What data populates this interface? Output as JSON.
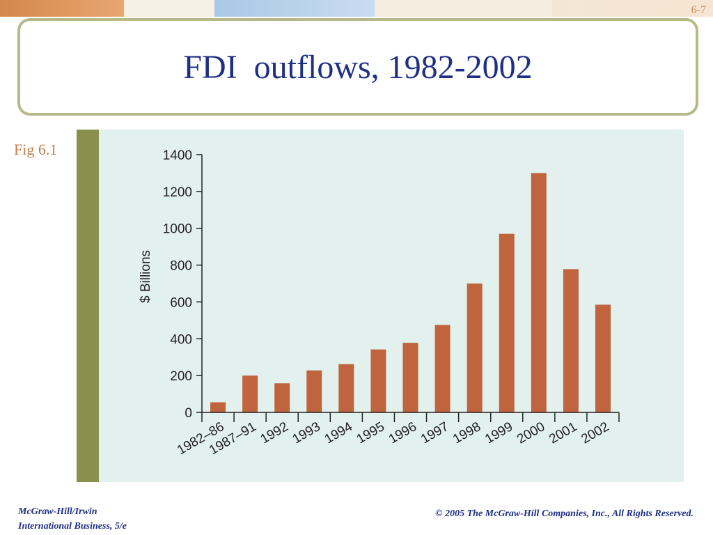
{
  "slide": {
    "number": "6-7",
    "title": "FDI  outflows, 1982-2002",
    "fig_label": "Fig 6.1"
  },
  "footer": {
    "left_line1": "McGraw-Hill/Irwin",
    "left_line2": "International Business, 5/e",
    "right": "© 2005 The McGraw-Hill Companies, Inc., All Rights Reserved."
  },
  "colors": {
    "bar": "#c0643d",
    "title": "#1f2f86",
    "panel": "#e2f1ee",
    "axis": "#231f20"
  },
  "chart_data": {
    "type": "bar",
    "title": "",
    "xlabel": "",
    "ylabel": "$ Billions",
    "categories": [
      "1982–86",
      "1987–91",
      "1992",
      "1993",
      "1994",
      "1995",
      "1996",
      "1997",
      "1998",
      "1999",
      "2000",
      "2001",
      "2002"
    ],
    "values": [
      55,
      200,
      158,
      228,
      262,
      342,
      378,
      475,
      700,
      970,
      1300,
      778,
      585
    ],
    "ylim": [
      0,
      1400
    ],
    "yticks": [
      0,
      200,
      400,
      600,
      800,
      1000,
      1200,
      1400
    ],
    "grid": false,
    "legend": "none"
  }
}
